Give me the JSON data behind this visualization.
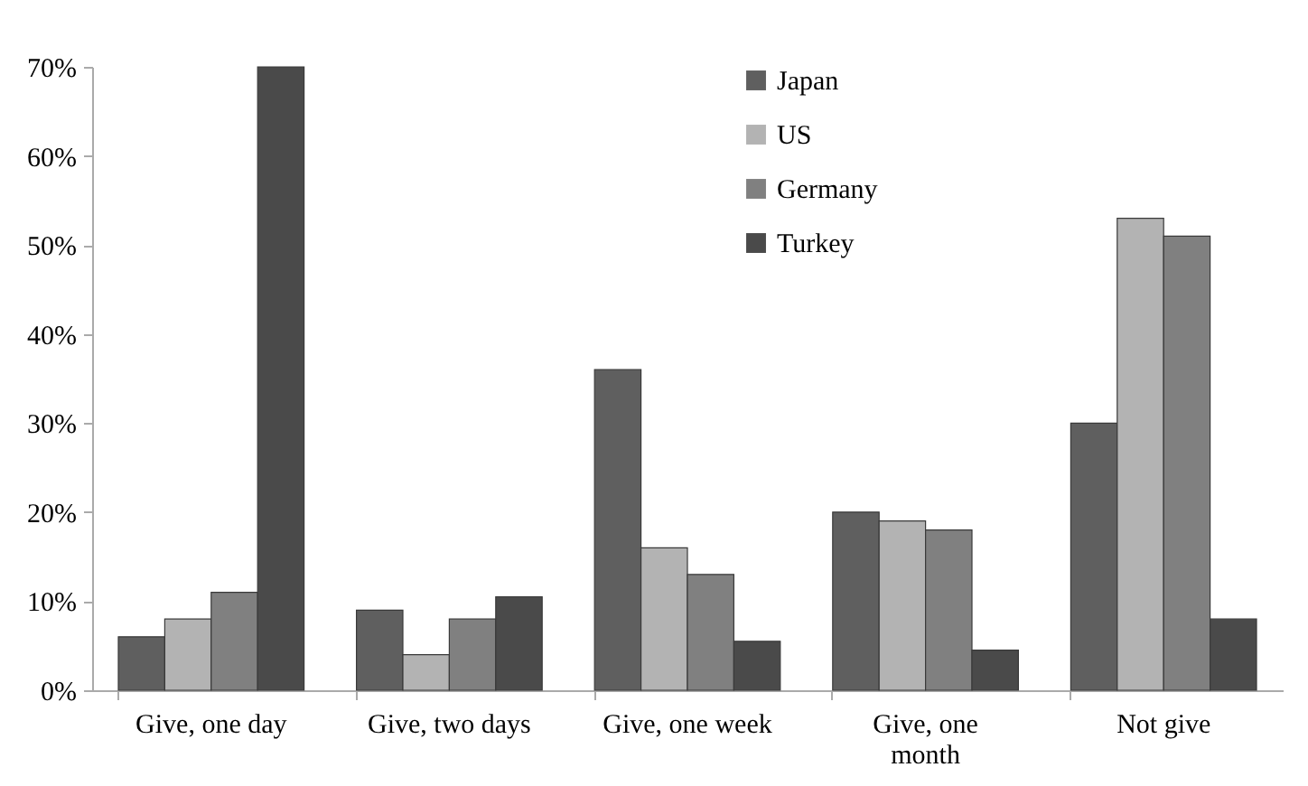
{
  "chart_data": {
    "type": "bar",
    "categories": [
      "Give, one day",
      "Give, two days",
      "Give, one week",
      "Give, one month",
      "Not give"
    ],
    "series": [
      {
        "name": "Japan",
        "color": "#5f5f5f",
        "values": [
          6,
          9,
          36,
          20,
          30
        ]
      },
      {
        "name": "US",
        "color": "#b3b3b3",
        "values": [
          8,
          4,
          16,
          19,
          53
        ]
      },
      {
        "name": "Germany",
        "color": "#808080",
        "values": [
          11,
          8,
          13,
          18,
          51
        ]
      },
      {
        "name": "Turkey",
        "color": "#4a4a4a",
        "values": [
          70,
          10.5,
          5.5,
          4.5,
          8
        ]
      }
    ],
    "ylim": [
      0,
      70
    ],
    "yticks": [
      {
        "value": 0,
        "label": "0%"
      },
      {
        "value": 10,
        "label": "10%"
      },
      {
        "value": 20,
        "label": "20%"
      },
      {
        "value": 30,
        "label": "30%"
      },
      {
        "value": 40,
        "label": "40%"
      },
      {
        "value": 50,
        "label": "50%"
      },
      {
        "value": 60,
        "label": "60%"
      },
      {
        "value": 70,
        "label": "70%"
      }
    ],
    "grid": false,
    "legend": "top right"
  }
}
